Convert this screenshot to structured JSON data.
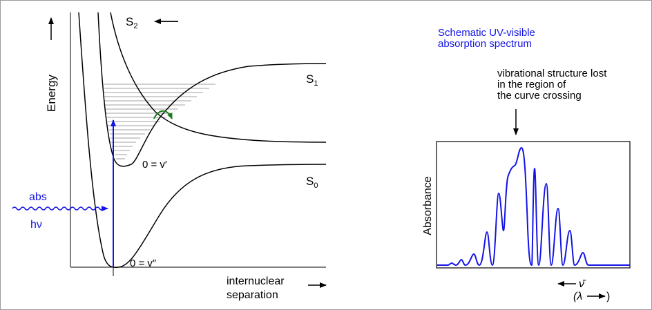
{
  "potential_diagram": {
    "y_axis_label": "Energy",
    "x_axis_label_line1": "internuclear",
    "x_axis_label_line2": "separation",
    "state_s2": "S",
    "state_s2_sub": "2",
    "state_s1": "S",
    "state_s1_sub": "1",
    "state_s0": "S",
    "state_s0_sub": "0",
    "level_upper": "0 = v′",
    "level_lower": "0 = v″",
    "abs_label": "abs",
    "hv_label": "hν"
  },
  "spectrum": {
    "title_line1": "Schematic UV-visible",
    "title_line2": "absorption spectrum",
    "note_line1": "vibrational structure lost",
    "note_line2": "in the region of",
    "note_line3": "the curve crossing",
    "y_axis_label": "Absorbance",
    "x_axis_label": "ν̄",
    "x_axis_label_alt": "(λ",
    "x_axis_label_alt_close": ")"
  },
  "colors": {
    "line": "#000000",
    "accent_blue": "#1414e6",
    "crossing_arrow_green": "#1a7a1a",
    "frame": "#9a9a9a",
    "vibrational_levels": "#808080"
  }
}
